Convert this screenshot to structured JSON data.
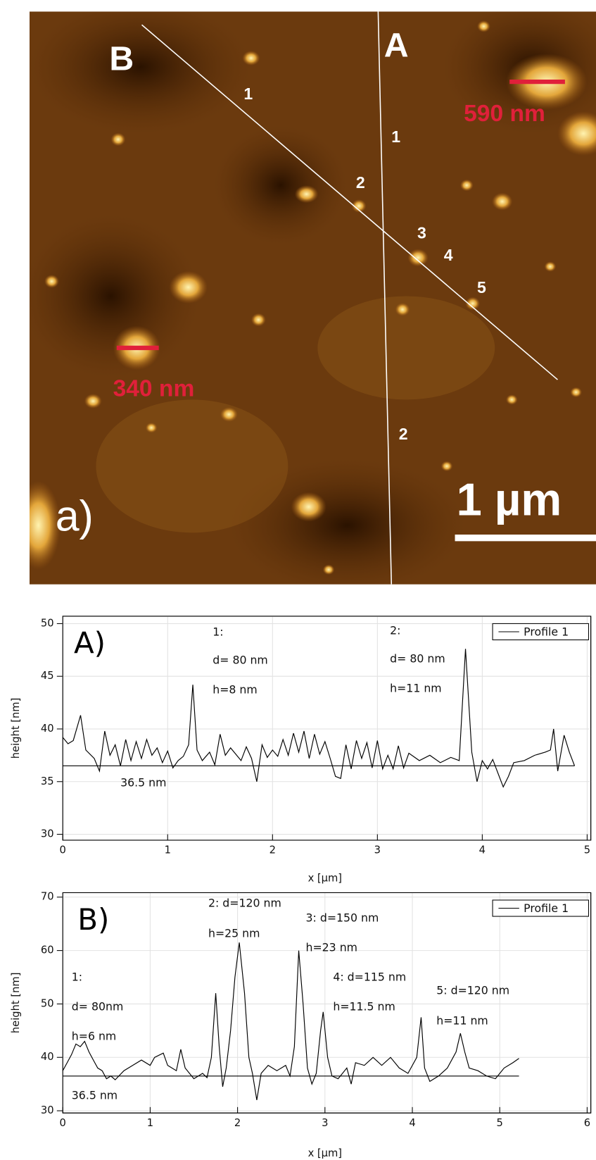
{
  "image": {
    "labels": [
      "B",
      "A",
      "1",
      "2",
      "1",
      "2",
      "3",
      "4",
      "5",
      "590 nm",
      "340 nm",
      "a)",
      "1 µm"
    ]
  },
  "chart_data": [
    {
      "type": "line",
      "title": "A)",
      "x_label": "x [µm]",
      "y_label": "height [nm]",
      "xlim": [
        0,
        5
      ],
      "ylim": [
        30,
        50
      ],
      "xticks": [
        0,
        1,
        2,
        3,
        4,
        5
      ],
      "yticks": [
        30,
        35,
        40,
        45,
        50
      ],
      "legend": "upper right",
      "color": "#000000",
      "reference_line": {
        "value": 36.5,
        "label": "36.5 nm"
      },
      "annotations": [
        "1:",
        "d= 80 nm",
        "h=8 nm",
        "2:",
        "d= 80 nm",
        "h=11 nm"
      ],
      "x": [
        0,
        0.05,
        0.1,
        0.17,
        0.22,
        0.3,
        0.35,
        0.4,
        0.45,
        0.5,
        0.55,
        0.6,
        0.65,
        0.7,
        0.75,
        0.8,
        0.85,
        0.9,
        0.95,
        1.0,
        1.05,
        1.1,
        1.15,
        1.2,
        1.24,
        1.28,
        1.33,
        1.4,
        1.45,
        1.5,
        1.55,
        1.6,
        1.7,
        1.75,
        1.8,
        1.85,
        1.9,
        1.95,
        2.0,
        2.05,
        2.1,
        2.15,
        2.2,
        2.25,
        2.3,
        2.35,
        2.4,
        2.45,
        2.5,
        2.55,
        2.6,
        2.65,
        2.7,
        2.75,
        2.8,
        2.85,
        2.9,
        2.95,
        3.0,
        3.05,
        3.1,
        3.15,
        3.2,
        3.25,
        3.3,
        3.4,
        3.5,
        3.6,
        3.7,
        3.78,
        3.84,
        3.9,
        3.95,
        4.0,
        4.05,
        4.1,
        4.15,
        4.2,
        4.25,
        4.3,
        4.4,
        4.5,
        4.6,
        4.65,
        4.68,
        4.72,
        4.78,
        4.83,
        4.88
      ],
      "series": [
        {
          "name": "Profile 1",
          "values": [
            39.2,
            38.6,
            38.9,
            41.3,
            38.0,
            37.2,
            36.0,
            39.8,
            37.5,
            38.5,
            36.5,
            39.0,
            37.0,
            38.8,
            37.2,
            39.0,
            37.5,
            38.2,
            36.8,
            37.9,
            36.3,
            37.0,
            37.4,
            38.5,
            44.2,
            38.0,
            37.0,
            37.8,
            36.6,
            39.5,
            37.5,
            38.2,
            37.0,
            38.3,
            37.2,
            35.0,
            38.5,
            37.3,
            38.0,
            37.4,
            39.0,
            37.5,
            39.6,
            37.8,
            39.8,
            37.2,
            39.5,
            37.6,
            38.8,
            37.2,
            35.5,
            35.3,
            38.5,
            36.2,
            38.9,
            37.2,
            38.7,
            36.3,
            38.9,
            36.2,
            37.5,
            36.2,
            38.4,
            36.3,
            37.7,
            37.0,
            37.5,
            36.8,
            37.3,
            37.0,
            47.6,
            37.8,
            35.0,
            37.0,
            36.2,
            37.1,
            35.8,
            34.5,
            35.5,
            36.8,
            37.0,
            37.5,
            37.8,
            38.0,
            40.0,
            36.0,
            39.4,
            37.8,
            36.5
          ]
        }
      ]
    },
    {
      "type": "line",
      "title": "B)",
      "x_label": "x [µm]",
      "y_label": "height [nm]",
      "xlim": [
        0,
        6
      ],
      "ylim": [
        30,
        70
      ],
      "xticks": [
        0,
        1,
        2,
        3,
        4,
        5,
        6
      ],
      "yticks": [
        30,
        40,
        50,
        60,
        70
      ],
      "legend": "upper right",
      "color": "#000000",
      "reference_line": {
        "value": 36.5,
        "label": "36.5 nm"
      },
      "annotations": [
        "1:",
        "d= 80nm",
        "h=6 nm",
        "2: d=120 nm",
        "h=25 nm",
        "3: d=150 nm",
        "h=23 nm",
        "4: d=115 nm",
        "h=11.5 nm",
        "5: d=120 nm",
        "h=11 nm"
      ],
      "x": [
        0,
        0.05,
        0.1,
        0.15,
        0.2,
        0.25,
        0.3,
        0.35,
        0.4,
        0.45,
        0.5,
        0.55,
        0.6,
        0.7,
        0.8,
        0.9,
        1.0,
        1.05,
        1.15,
        1.2,
        1.3,
        1.35,
        1.4,
        1.5,
        1.6,
        1.65,
        1.7,
        1.75,
        1.79,
        1.83,
        1.87,
        1.92,
        1.97,
        2.02,
        2.08,
        2.13,
        2.17,
        2.22,
        2.27,
        2.35,
        2.45,
        2.55,
        2.6,
        2.65,
        2.7,
        2.75,
        2.8,
        2.85,
        2.9,
        2.95,
        2.98,
        3.03,
        3.08,
        3.15,
        3.25,
        3.3,
        3.35,
        3.45,
        3.55,
        3.65,
        3.75,
        3.85,
        3.95,
        4.05,
        4.1,
        4.14,
        4.2,
        4.3,
        4.4,
        4.5,
        4.55,
        4.6,
        4.65,
        4.75,
        4.85,
        4.95,
        5.05,
        5.15,
        5.22
      ],
      "series": [
        {
          "name": "Profile 1",
          "values": [
            37.5,
            39.0,
            40.5,
            42.5,
            42.0,
            43.0,
            41.0,
            39.5,
            38.0,
            37.5,
            36.0,
            36.5,
            35.8,
            37.5,
            38.5,
            39.5,
            38.5,
            40.0,
            40.8,
            38.5,
            37.5,
            41.5,
            38.0,
            36.0,
            37.0,
            36.2,
            40.0,
            52.0,
            42.0,
            34.5,
            38.0,
            45.0,
            55.0,
            61.5,
            52.0,
            40.0,
            37.0,
            32.0,
            37.0,
            38.5,
            37.5,
            38.5,
            36.5,
            42.0,
            60.0,
            50.0,
            38.0,
            35.0,
            37.0,
            45.0,
            48.5,
            40.0,
            36.5,
            36.0,
            38.0,
            35.0,
            39.0,
            38.5,
            40.0,
            38.5,
            40.0,
            38.0,
            37.0,
            40.0,
            47.5,
            38.0,
            35.5,
            36.5,
            38.0,
            41.0,
            44.5,
            41.0,
            38.0,
            37.5,
            36.5,
            36.0,
            38.0,
            39.0,
            39.8
          ]
        }
      ]
    }
  ]
}
